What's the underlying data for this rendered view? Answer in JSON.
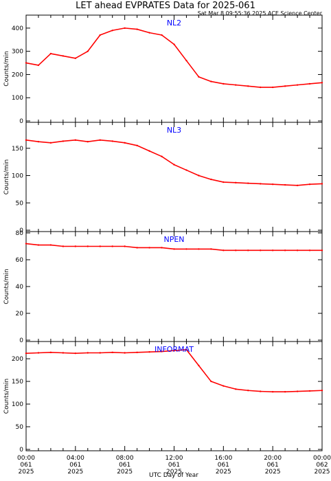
{
  "header": {
    "title": "LET ahead EVPRATES Data for 2025-061",
    "timestamp": "Sat Mar  8 09:55:36 2025 ACE Science Center"
  },
  "x_axis": {
    "label": "UTC Day of Year",
    "ticks": [
      {
        "hour": 0,
        "time": "00:00",
        "day": "061",
        "year": "2025"
      },
      {
        "hour": 4,
        "time": "04:00",
        "day": "061",
        "year": "2025"
      },
      {
        "hour": 8,
        "time": "08:00",
        "day": "061",
        "year": "2025"
      },
      {
        "hour": 12,
        "time": "12:00",
        "day": "061",
        "year": "2025"
      },
      {
        "hour": 16,
        "time": "16:00",
        "day": "061",
        "year": "2025"
      },
      {
        "hour": 20,
        "time": "20:00",
        "day": "061",
        "year": "2025"
      },
      {
        "hour": 24,
        "time": "00:00",
        "day": "062",
        "year": "2025"
      }
    ]
  },
  "colors": {
    "series": "#ff0000",
    "panel_label": "#0000ff",
    "frame": "#000000"
  },
  "chart_data": [
    {
      "type": "line",
      "name": "NL2",
      "ylabel": "Counts/min",
      "ylim": [
        0,
        450
      ],
      "xlim": [
        0,
        24
      ],
      "yticks": [
        0,
        100,
        200,
        300,
        400
      ],
      "x": [
        0,
        1,
        2,
        3,
        4,
        5,
        6,
        7,
        8,
        9,
        10,
        11,
        12,
        13,
        14,
        15,
        16,
        17,
        18,
        19,
        20,
        21,
        22,
        23,
        24
      ],
      "values": [
        250,
        240,
        290,
        280,
        270,
        300,
        370,
        390,
        400,
        395,
        380,
        370,
        330,
        260,
        190,
        170,
        160,
        155,
        150,
        145,
        145,
        150,
        155,
        160,
        165
      ]
    },
    {
      "type": "line",
      "name": "NL3",
      "ylabel": "Counts/min",
      "ylim": [
        0,
        195
      ],
      "xlim": [
        0,
        24
      ],
      "yticks": [
        0,
        50,
        100,
        150
      ],
      "x": [
        0,
        1,
        2,
        3,
        4,
        5,
        6,
        7,
        8,
        9,
        10,
        11,
        12,
        13,
        14,
        15,
        16,
        17,
        18,
        19,
        20,
        21,
        22,
        23,
        24
      ],
      "values": [
        165,
        162,
        160,
        163,
        165,
        162,
        165,
        163,
        160,
        155,
        145,
        135,
        120,
        110,
        100,
        93,
        88,
        87,
        86,
        85,
        84,
        83,
        82,
        84,
        85
      ]
    },
    {
      "type": "line",
      "name": "NPEN",
      "ylabel": "Counts/min",
      "ylim": [
        0,
        80
      ],
      "xlim": [
        0,
        24
      ],
      "yticks": [
        0,
        20,
        40,
        60,
        80
      ],
      "x": [
        0,
        1,
        2,
        3,
        4,
        5,
        6,
        7,
        8,
        9,
        10,
        11,
        12,
        13,
        14,
        15,
        16,
        17,
        18,
        19,
        20,
        21,
        22,
        23,
        24
      ],
      "values": [
        72,
        71,
        71,
        70,
        70,
        70,
        70,
        70,
        70,
        69,
        69,
        69,
        68,
        68,
        68,
        68,
        67,
        67,
        67,
        67,
        67,
        67,
        67,
        67,
        67
      ]
    },
    {
      "type": "line",
      "name": "INFORMAT",
      "ylabel": "Counts/min",
      "ylim": [
        0,
        235
      ],
      "xlim": [
        0,
        24
      ],
      "yticks": [
        0,
        50,
        100,
        150,
        200
      ],
      "x": [
        0,
        1,
        2,
        3,
        4,
        5,
        6,
        7,
        8,
        9,
        10,
        11,
        12,
        13,
        14,
        15,
        16,
        17,
        18,
        19,
        20,
        21,
        22,
        23,
        24
      ],
      "values": [
        212,
        213,
        214,
        213,
        212,
        213,
        213,
        214,
        213,
        214,
        215,
        216,
        218,
        220,
        185,
        150,
        140,
        133,
        130,
        128,
        127,
        127,
        128,
        129,
        130
      ]
    }
  ]
}
